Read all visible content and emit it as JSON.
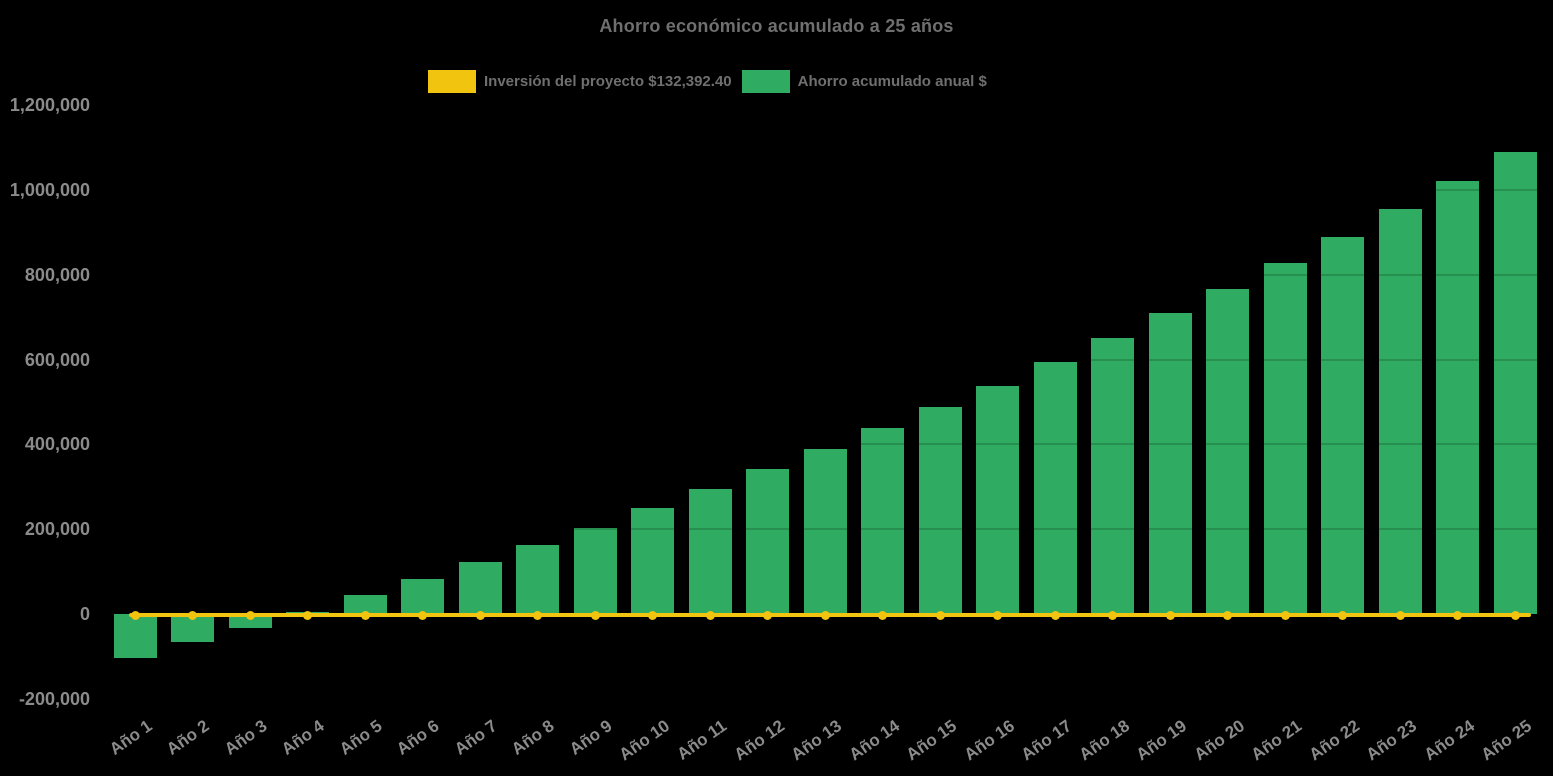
{
  "title": "Ahorro económico acumulado a 25 años",
  "legend": {
    "position": "top",
    "items": [
      {
        "label": "Inversión del proyecto $132,392.40",
        "color": "#f1c40f",
        "series": "investment-line"
      },
      {
        "label": "Ahorro acumulado anual $",
        "color": "#2fac61",
        "series": "savings-bars"
      }
    ]
  },
  "colors": {
    "background": "#000000",
    "bar_green": "#2fac61",
    "line_yellow": "#f1c40f",
    "title_text": "#6f6f6f",
    "tick_text": "#8b8b8b"
  },
  "chart_data": {
    "type": "bar",
    "subtype": "combo bar + flat line with circular markers",
    "title": "Ahorro económico acumulado a 25 años",
    "xlabel": "",
    "ylabel": "",
    "ylim": [
      -200000,
      1200000
    ],
    "ytick_step": 200000,
    "grid": "horizontal, very faint (visible only where gridlines cross bars)",
    "legend_position": "top",
    "categories": [
      "Año 1",
      "Año 2",
      "Año 3",
      "Año 4",
      "Año 5",
      "Año 6",
      "Año 7",
      "Año 8",
      "Año 9",
      "Año 10",
      "Año 11",
      "Año 12",
      "Año 13",
      "Año 14",
      "Año 15",
      "Año 16",
      "Año 17",
      "Año 18",
      "Año 19",
      "Año 20",
      "Año 21",
      "Año 22",
      "Año 23",
      "Año 24",
      "Año 25"
    ],
    "series": [
      {
        "name": "Ahorro acumulado anual $",
        "type": "bar",
        "color": "#2fac61",
        "values": [
          -104000,
          -66000,
          -33000,
          5000,
          44000,
          83000,
          123000,
          163000,
          203000,
          250000,
          295000,
          342000,
          389000,
          439000,
          488000,
          538000,
          594000,
          651000,
          710000,
          766000,
          828000,
          889000,
          955000,
          1021000,
          1089000
        ]
      },
      {
        "name": "Inversión del proyecto $132,392.40",
        "type": "line",
        "color": "#f1c40f",
        "marker": "circle",
        "note": "flat horizontal line drawn at y ≈ 0 across all 25 years",
        "investment_amount_in_label": 132392.4,
        "values": [
          0,
          0,
          0,
          0,
          0,
          0,
          0,
          0,
          0,
          0,
          0,
          0,
          0,
          0,
          0,
          0,
          0,
          0,
          0,
          0,
          0,
          0,
          0,
          0,
          0
        ]
      }
    ],
    "yticks": [
      {
        "value": 1200000,
        "label": "1,200,000"
      },
      {
        "value": 1000000,
        "label": "1,000,000"
      },
      {
        "value": 800000,
        "label": "800,000"
      },
      {
        "value": 600000,
        "label": "600,000"
      },
      {
        "value": 400000,
        "label": "400,000"
      },
      {
        "value": 200000,
        "label": "200,000"
      },
      {
        "value": 0,
        "label": "0"
      },
      {
        "value": -200000,
        "label": "-200,000"
      }
    ]
  }
}
